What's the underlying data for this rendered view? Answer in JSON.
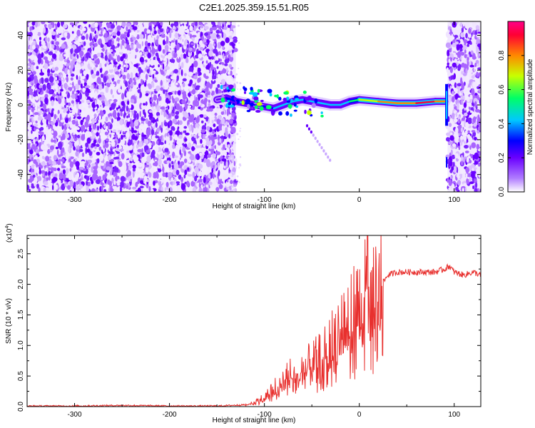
{
  "title": "C2E1.2025.359.15.51.R05",
  "chart_data": [
    {
      "type": "heatmap",
      "title": "C2E1.2025.359.15.51.R05",
      "xlabel": "Height of straight line (km)",
      "ylabel": "Frequency (Hz)",
      "xlim": [
        -350,
        128
      ],
      "ylim": [
        -50,
        48
      ],
      "xticks": [
        -300,
        -200,
        -100,
        0,
        100
      ],
      "xtick_labels": [
        "-300",
        "-200",
        "-100",
        "0",
        "100"
      ],
      "yticks": [
        -40,
        -20,
        0,
        20,
        40
      ],
      "ytick_labels": [
        "-40",
        "-20",
        "0",
        "20",
        "40"
      ],
      "noise_regions_km": [
        [
          -350,
          -130
        ],
        [
          93,
          128
        ]
      ],
      "echo_trace": {
        "x": [
          -150,
          -140,
          -130,
          -120,
          -110,
          -100,
          -90,
          -80,
          -70,
          -60,
          -50,
          -40,
          -30,
          -20,
          -10,
          0,
          20,
          40,
          60,
          80,
          90
        ],
        "y": [
          3,
          4,
          2,
          1,
          0,
          -1,
          -2,
          0,
          2,
          3,
          2,
          1,
          0,
          0,
          2,
          3,
          2,
          1,
          1,
          2,
          2
        ],
        "intensity": [
          0.3,
          0.4,
          0.45,
          0.4,
          0.35,
          0.4,
          0.5,
          0.45,
          0.55,
          0.5,
          0.45,
          0.5,
          0.45,
          0.5,
          0.6,
          0.75,
          0.8,
          0.85,
          0.9,
          0.85,
          0.7
        ]
      },
      "spike_at_km": 92,
      "colorbar": {
        "label": "Normalized spectral amplitude",
        "range": [
          0,
          1
        ],
        "ticks": [
          0.0,
          0.2,
          0.4,
          0.6,
          0.8
        ],
        "tick_labels": [
          "0.0",
          "0.2",
          "0.4",
          "0.6",
          "0.8"
        ]
      }
    },
    {
      "type": "line",
      "xlabel": "Height of straight line (km)",
      "ylabel": "SNR (10 * v/v)",
      "scale_label": "(x10",
      "scale_exp": "4",
      "scale_close": ")",
      "xlim": [
        -350,
        128
      ],
      "ylim": [
        0,
        2.8
      ],
      "xticks": [
        -300,
        -200,
        -100,
        0,
        100
      ],
      "xtick_labels": [
        "-300",
        "-200",
        "-100",
        "0",
        "100"
      ],
      "yticks": [
        0.0,
        0.5,
        1.0,
        1.5,
        2.0,
        2.5
      ],
      "ytick_labels": [
        "0.0",
        "0.5",
        "1.0",
        "1.5",
        "2.0",
        "2.5"
      ],
      "series": [
        {
          "name": "SNR",
          "color": "#e8302e",
          "x": [
            -350,
            -300,
            -250,
            -200,
            -150,
            -120,
            -110,
            -100,
            -90,
            -80,
            -70,
            -60,
            -50,
            -40,
            -30,
            -25,
            -20,
            -10,
            0,
            5,
            8,
            10,
            15,
            20,
            30,
            40,
            60,
            80,
            90,
            95,
            100,
            110,
            120,
            128
          ],
          "y": [
            0.01,
            0.01,
            0.02,
            0.01,
            0.01,
            0.03,
            0.08,
            0.15,
            0.3,
            0.45,
            0.55,
            0.6,
            0.7,
            0.8,
            1.0,
            1.2,
            1.3,
            1.5,
            1.6,
            1.7,
            2.8,
            1.4,
            1.7,
            1.9,
            2.15,
            2.2,
            2.2,
            2.2,
            2.25,
            2.3,
            2.2,
            2.15,
            2.2,
            2.15
          ]
        }
      ]
    }
  ],
  "colors": {
    "noise": "#7a22ff",
    "series": "#e8302e",
    "colormap": [
      "#ffffff",
      "#b07cff",
      "#6a00ff",
      "#0000ff",
      "#00c8ff",
      "#00ff66",
      "#c8ff00",
      "#ff8800",
      "#ff0033",
      "#ff0088"
    ]
  }
}
